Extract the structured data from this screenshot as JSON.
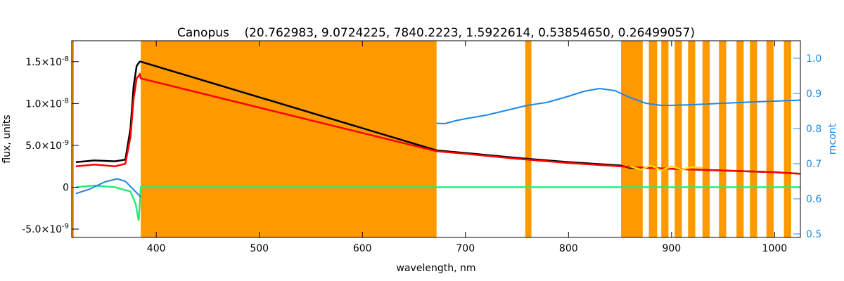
{
  "chart_data": {
    "type": "line",
    "title": "Canopus    (20.762983, 9.0724225, 7840.2223, 1.5922614, 0.53854650, 0.26499057)",
    "xlabel": "wavelength, nm",
    "ylabel": "flux, units",
    "y2label": "mcont",
    "xlim": [
      318,
      1025
    ],
    "ylim": [
      -6e-09,
      1.75e-08
    ],
    "y2lim": [
      0.49,
      1.05
    ],
    "xticks": [
      {
        "value": 400,
        "label": "400"
      },
      {
        "value": 500,
        "label": "500"
      },
      {
        "value": 600,
        "label": "600"
      },
      {
        "value": 700,
        "label": "700"
      },
      {
        "value": 800,
        "label": "800"
      },
      {
        "value": 900,
        "label": "900"
      },
      {
        "value": 1000,
        "label": "1000"
      }
    ],
    "yticks": [
      {
        "value": -5e-09,
        "mant": "-5.0×10",
        "exp": "-9"
      },
      {
        "value": 0,
        "mant": "0",
        "exp": ""
      },
      {
        "value": 5e-09,
        "mant": "5.0×10",
        "exp": "-9"
      },
      {
        "value": 1e-08,
        "mant": "1.0×10",
        "exp": "-8"
      },
      {
        "value": 1.5e-08,
        "mant": "1.5×10",
        "exp": "-8"
      }
    ],
    "y2ticks": [
      {
        "value": 0.5,
        "label": "0.5"
      },
      {
        "value": 0.6,
        "label": "0.6"
      },
      {
        "value": 0.7,
        "label": "0.7"
      },
      {
        "value": 0.8,
        "label": "0.8"
      },
      {
        "value": 0.9,
        "label": "0.9"
      },
      {
        "value": 1.0,
        "label": "1.0"
      }
    ],
    "masked_regions": [
      [
        318,
        320
      ],
      [
        385,
        672
      ],
      [
        758,
        764
      ],
      [
        851,
        872
      ],
      [
        878,
        886
      ],
      [
        890,
        897
      ],
      [
        903,
        910
      ],
      [
        916,
        923
      ],
      [
        930,
        937
      ],
      [
        946,
        953
      ],
      [
        963,
        970
      ],
      [
        976,
        983
      ],
      [
        992,
        999
      ],
      [
        1009,
        1016
      ]
    ],
    "series": [
      {
        "color": "#000000",
        "axis": "left",
        "x": [
          322,
          340,
          360,
          370,
          375,
          378,
          381,
          384,
          385,
          672,
          700,
          750,
          800,
          850,
          860,
          880,
          900,
          950,
          1000,
          1025
        ],
        "y": [
          3e-09,
          3.2e-09,
          3.1e-09,
          3.3e-09,
          7e-09,
          1.2e-08,
          1.45e-08,
          1.5e-08,
          1.5e-08,
          4.4e-09,
          4.1e-09,
          3.5e-09,
          3e-09,
          2.6e-09,
          2.3e-09,
          2.3e-09,
          2.2e-09,
          2e-09,
          1.8e-09,
          1.6e-09
        ]
      },
      {
        "color": "#ff0000",
        "axis": "left",
        "x": [
          322,
          340,
          360,
          370,
          375,
          378,
          381,
          384,
          385,
          672,
          700,
          750,
          800,
          850,
          860,
          880,
          900,
          950,
          1000,
          1025
        ],
        "y": [
          2.5e-09,
          2.7e-09,
          2.5e-09,
          2.8e-09,
          6e-09,
          1.05e-08,
          1.3e-08,
          1.35e-08,
          1.3e-08,
          4.3e-09,
          4e-09,
          3.4e-09,
          2.9e-09,
          2.5e-09,
          2.4e-09,
          2.3e-09,
          2.2e-09,
          2e-09,
          1.8e-09,
          1.6e-09
        ]
      },
      {
        "color": "#ffd700",
        "axis": "left",
        "x": [
          860,
          870,
          880,
          890,
          900,
          910,
          920,
          930
        ],
        "y": [
          2.5e-09,
          2.1e-09,
          2.6e-09,
          2e-09,
          2.5e-09,
          2.1e-09,
          2.4e-09,
          2.3e-09
        ]
      },
      {
        "color": "#2aea7a",
        "axis": "left",
        "x": [
          322,
          340,
          360,
          375,
          380,
          383,
          385,
          672,
          700,
          750,
          800,
          850,
          900,
          950,
          1000,
          1025
        ],
        "y": [
          0,
          2e-10,
          0,
          -5e-10,
          -2e-09,
          -4e-09,
          0,
          0,
          0,
          0,
          0,
          0,
          0,
          0,
          0,
          0
        ]
      },
      {
        "color": "#1e88e5",
        "axis": "right",
        "x": [
          322,
          335,
          350,
          362,
          370,
          380,
          385
        ],
        "y": [
          0.615,
          0.627,
          0.648,
          0.657,
          0.65,
          0.62,
          0.605
        ]
      },
      {
        "color": "#1e88e5",
        "axis": "right",
        "x": [
          672,
          680,
          690,
          700,
          720,
          740,
          760,
          780,
          800,
          815,
          830,
          845,
          860,
          875,
          890,
          900,
          920,
          950,
          980,
          1000,
          1025
        ],
        "y": [
          0.815,
          0.814,
          0.822,
          0.828,
          0.838,
          0.852,
          0.866,
          0.875,
          0.892,
          0.906,
          0.914,
          0.908,
          0.888,
          0.872,
          0.866,
          0.866,
          0.868,
          0.872,
          0.876,
          0.878,
          0.881
        ]
      }
    ]
  }
}
